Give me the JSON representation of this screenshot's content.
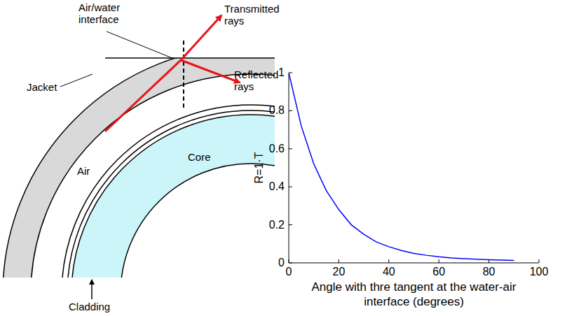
{
  "chart_data": {
    "type": "line",
    "color": "#0000ff",
    "ylabel": "R=1·T",
    "xlabel": "Angle with thre tangent at the water-air interface (degrees)",
    "x": [
      0,
      5,
      10,
      15,
      20,
      25,
      30,
      35,
      40,
      45,
      50,
      55,
      60,
      65,
      70,
      75,
      80,
      85,
      90
    ],
    "values": [
      1.0,
      0.72,
      0.52,
      0.38,
      0.28,
      0.2,
      0.15,
      0.11,
      0.085,
      0.065,
      0.05,
      0.04,
      0.032,
      0.026,
      0.022,
      0.019,
      0.017,
      0.015,
      0.013
    ],
    "xlim": [
      0,
      100
    ],
    "xticks": [
      0,
      20,
      40,
      60,
      80,
      100
    ],
    "ylim": [
      0,
      1
    ],
    "yticks": [
      0,
      0.2,
      0.4,
      0.6,
      0.8,
      1
    ],
    "grid": false
  },
  "diagram": {
    "air_water_interface": [
      "Air/water",
      "interface"
    ],
    "transmitted_rays": [
      "Transmitted",
      "rays"
    ],
    "reflected_rays": [
      "Reflected",
      "rays"
    ],
    "jacket": "Jacket",
    "air": "Air",
    "core": "Core",
    "cladding": "Cladding"
  }
}
